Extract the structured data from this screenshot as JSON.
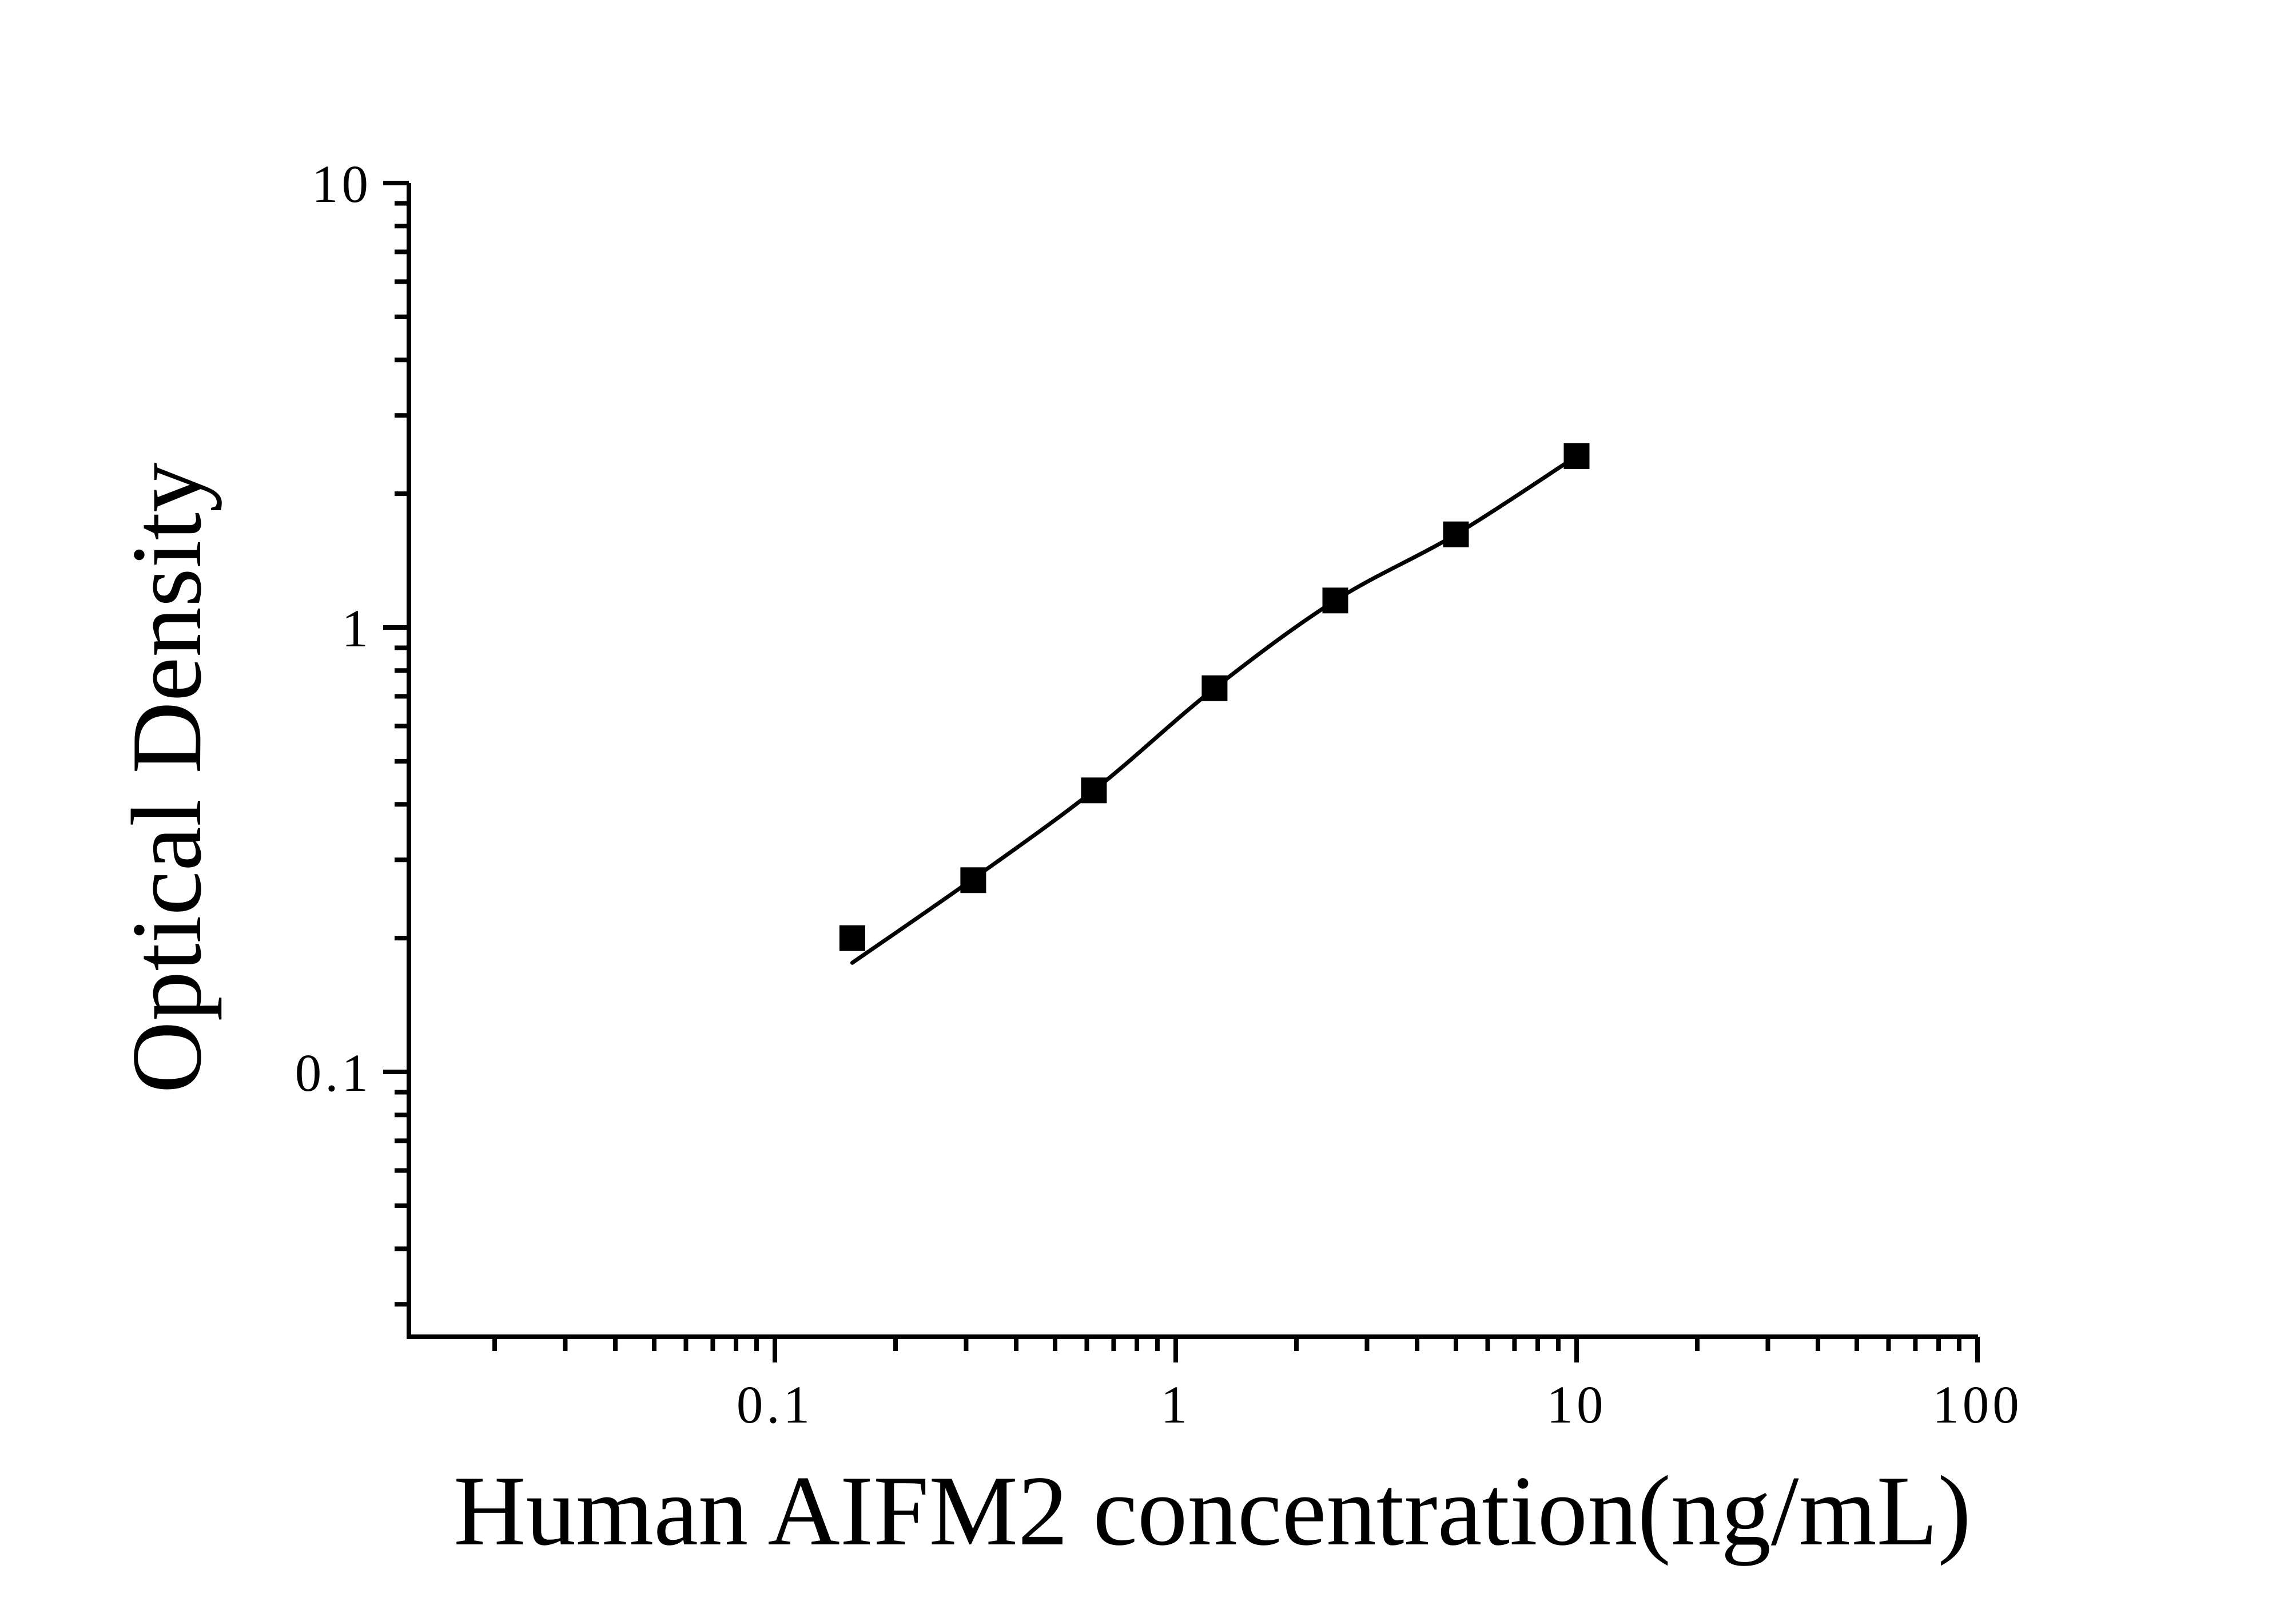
{
  "figure": {
    "background_color": "#ffffff",
    "axis_color": "#000000",
    "marker_color": "#000000",
    "line_color": "#000000"
  },
  "chart_data": {
    "type": "scatter",
    "title": "",
    "xlabel": "Human AIFM2 concentration(ng/mL)",
    "ylabel": "Optical Density",
    "x_scale": "log",
    "y_scale": "log",
    "grid": false,
    "legend_position": "none",
    "xlim": [
      0.0118,
      100
    ],
    "ylim": [
      0.0253,
      10
    ],
    "x_major_ticks": [
      {
        "value": 0.1,
        "label": "0.1"
      },
      {
        "value": 1,
        "label": "1"
      },
      {
        "value": 10,
        "label": "10"
      },
      {
        "value": 100,
        "label": "100"
      }
    ],
    "y_major_ticks": [
      {
        "value": 0.1,
        "label": "0.1"
      },
      {
        "value": 1,
        "label": "1"
      },
      {
        "value": 10,
        "label": "10"
      }
    ],
    "series": [
      {
        "name": "standard-points",
        "type": "scatter",
        "marker": "filled-square",
        "color": "#000000",
        "points": [
          {
            "x": 0.156,
            "y": 0.2
          },
          {
            "x": 0.3125,
            "y": 0.27
          },
          {
            "x": 0.625,
            "y": 0.43
          },
          {
            "x": 1.25,
            "y": 0.73
          },
          {
            "x": 2.5,
            "y": 1.15
          },
          {
            "x": 5,
            "y": 1.62
          },
          {
            "x": 10,
            "y": 2.43
          }
        ]
      },
      {
        "name": "fitted-curve",
        "type": "line",
        "color": "#000000",
        "points": [
          {
            "x": 0.156,
            "y": 0.176
          },
          {
            "x": 0.3125,
            "y": 0.272
          },
          {
            "x": 0.625,
            "y": 0.43
          },
          {
            "x": 1.25,
            "y": 0.73
          },
          {
            "x": 2.5,
            "y": 1.15
          },
          {
            "x": 5,
            "y": 1.62
          },
          {
            "x": 10,
            "y": 2.43
          }
        ]
      }
    ]
  }
}
